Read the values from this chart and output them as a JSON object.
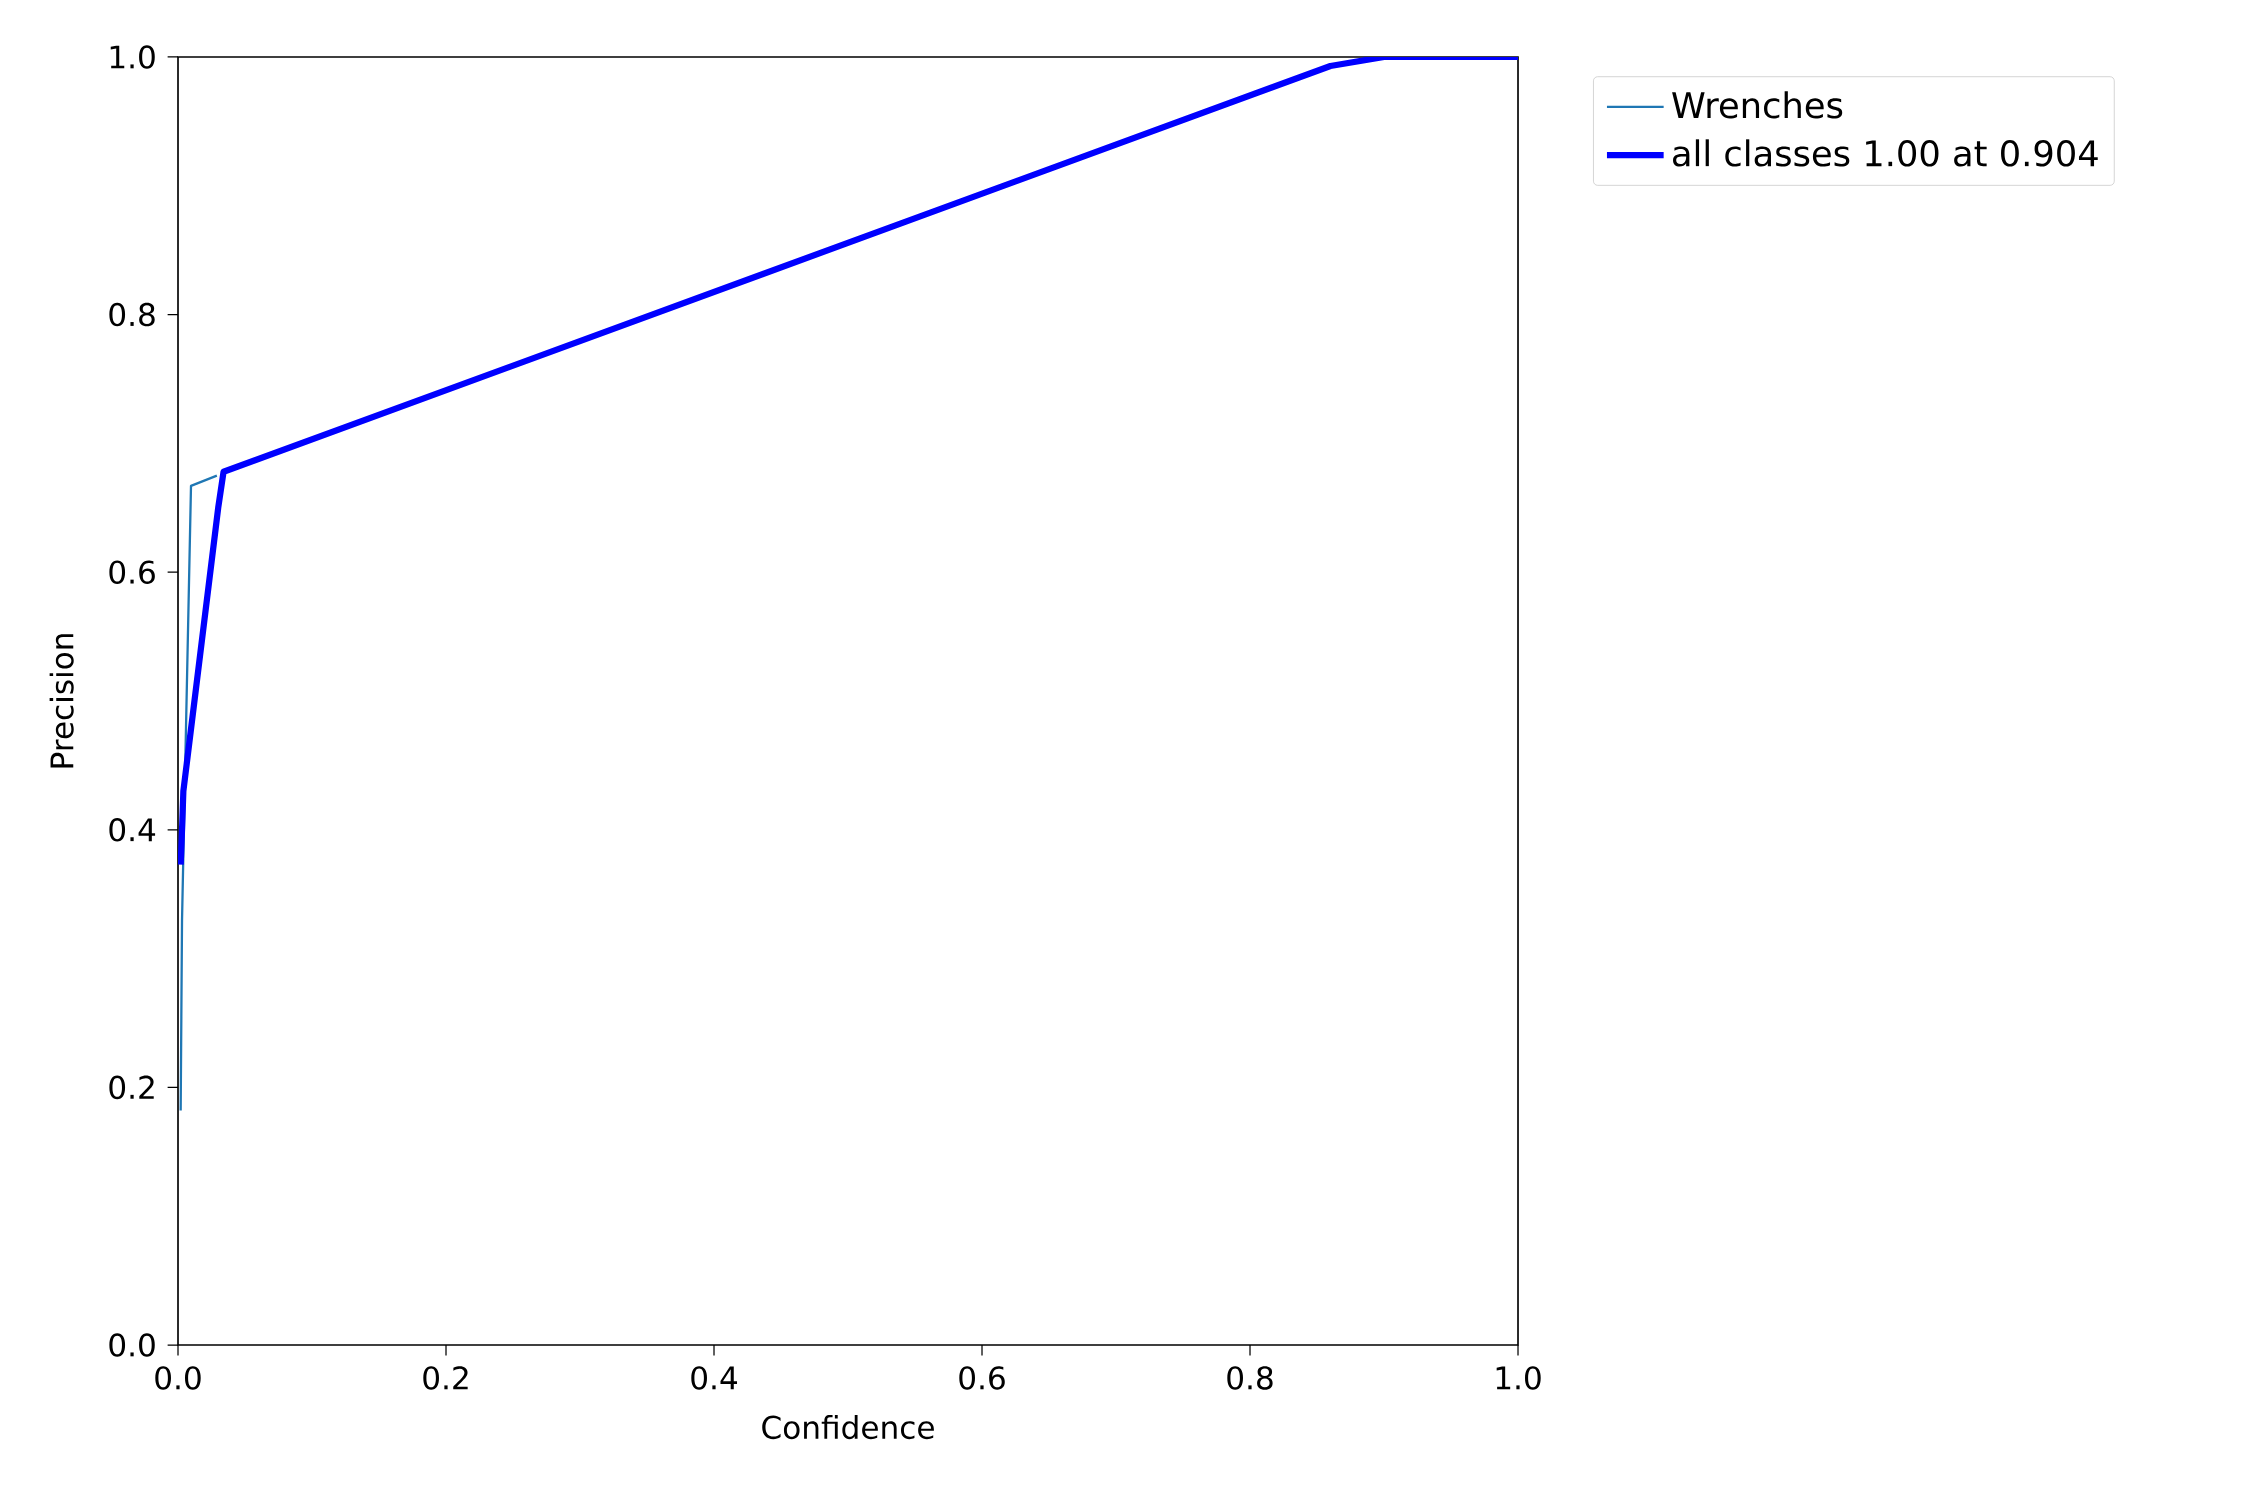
{
  "chart_data": {
    "type": "line",
    "xlabel": "Confidence",
    "ylabel": "Precision",
    "xlim": [
      0,
      1
    ],
    "ylim": [
      0,
      1
    ],
    "xticks": [
      {
        "value": 0,
        "label": "0.0"
      },
      0.2,
      0.4,
      0.6,
      0.8,
      {
        "value": 1,
        "label": "1.0"
      }
    ],
    "yticks": [
      {
        "value": 0,
        "label": "0.0"
      },
      0.2,
      0.4,
      0.6,
      0.8,
      {
        "value": 1,
        "label": "1.0"
      }
    ],
    "grid": false,
    "legend": "top right",
    "marker": "none",
    "line_style": "solid",
    "series": [
      {
        "name": "Wrenches",
        "color": "#1f77b4",
        "x": [
          0.002,
          0.003,
          0.0097,
          0.029
        ],
        "values": [
          0.182,
          0.33,
          0.667,
          0.675
        ]
      },
      {
        "name": "all classes 1.00 at 0.904",
        "color": "#0000ff",
        "x": [
          0.002,
          0.003,
          0.004,
          0.03,
          0.034,
          0.86,
          0.9,
          1.0
        ],
        "values": [
          0.373,
          0.4,
          0.43,
          0.65,
          0.678,
          0.993,
          1.0,
          1.0
        ]
      }
    ]
  }
}
